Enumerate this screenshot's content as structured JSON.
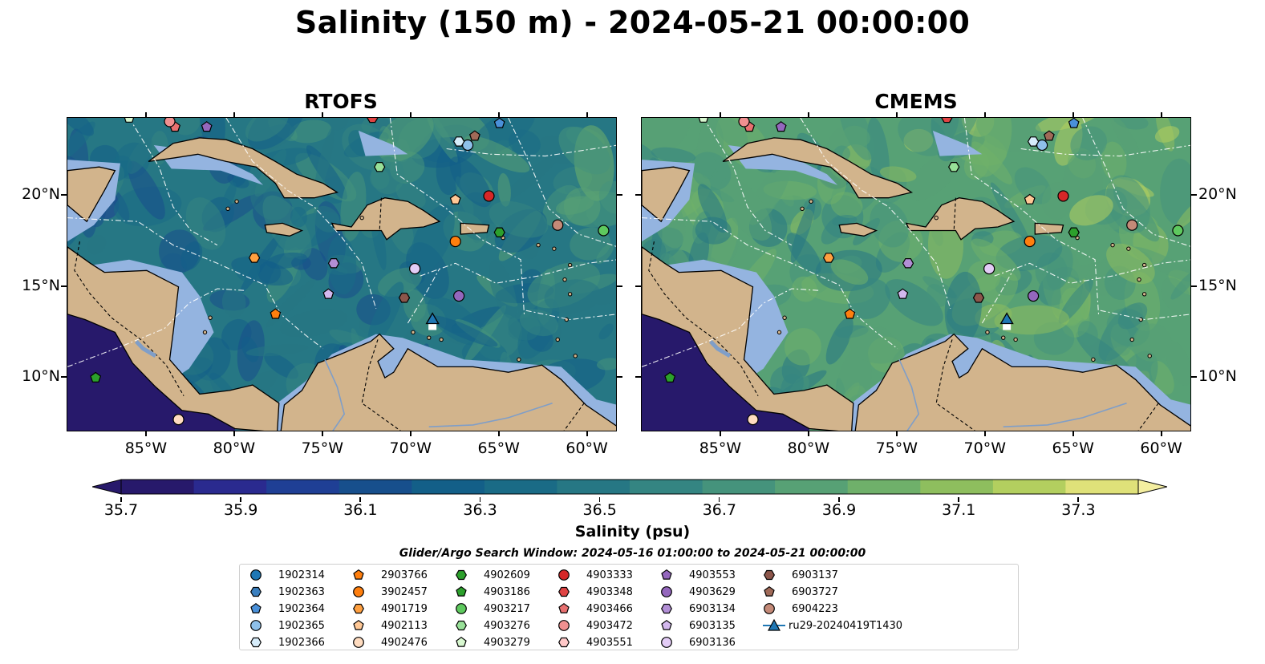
{
  "title": "Salinity (150 m) - 2024-05-21 00:00:00",
  "panels": [
    {
      "title": "RTOFS",
      "palette_bias": 0.0
    },
    {
      "title": "CMEMS",
      "palette_bias": 0.35
    }
  ],
  "axes": {
    "lon_ticks": [
      "85°W",
      "80°W",
      "75°W",
      "70°W",
      "65°W",
      "60°W"
    ],
    "lat_ticks": [
      "20°N",
      "15°N",
      "10°N"
    ],
    "lon_range": [
      -89.5,
      -58.3
    ],
    "lat_range": [
      7.0,
      24.3
    ]
  },
  "colorbar": {
    "ticks": [
      "35.7",
      "35.9",
      "36.1",
      "36.3",
      "36.5",
      "36.7",
      "36.9",
      "37.1",
      "37.3"
    ],
    "label": "Salinity (psu)",
    "range": [
      35.7,
      37.4
    ],
    "colors": [
      "#27196b",
      "#2a2a8f",
      "#1f3f95",
      "#174f8c",
      "#135f88",
      "#1a6b86",
      "#267784",
      "#348582",
      "#45937c",
      "#57a175",
      "#6fb06a",
      "#8ebe5e",
      "#b3cf5f",
      "#dfe179"
    ]
  },
  "search_window": "Glider/Argo Search Window: 2024-05-16 01:00:00 to 2024-05-21 00:00:00",
  "colors": {
    "land": "#d2b48c",
    "shelf": "#94b4e0",
    "deep": "#27196b",
    "glider": "#1f77b4"
  },
  "legend": [
    {
      "label": "1902314",
      "marker": "circle",
      "color": "#1f77b4"
    },
    {
      "label": "1902363",
      "marker": "hexagon",
      "color": "#3a7fbf"
    },
    {
      "label": "1902364",
      "marker": "pentagon",
      "color": "#4a90d9"
    },
    {
      "label": "1902365",
      "marker": "circle",
      "color": "#8ec0ea"
    },
    {
      "label": "1902366",
      "marker": "hexagon",
      "color": "#d6ecfa"
    },
    {
      "label": "2903766",
      "marker": "pentagon",
      "color": "#ff7f0e"
    },
    {
      "label": "3902457",
      "marker": "circle",
      "color": "#ff7f0e"
    },
    {
      "label": "4901719",
      "marker": "hexagon",
      "color": "#ffa040"
    },
    {
      "label": "4902113",
      "marker": "pentagon",
      "color": "#ffc896"
    },
    {
      "label": "4902476",
      "marker": "circle",
      "color": "#ffdcc0"
    },
    {
      "label": "4902609",
      "marker": "hexagon",
      "color": "#2ca02c"
    },
    {
      "label": "4903186",
      "marker": "pentagon",
      "color": "#2ca02c"
    },
    {
      "label": "4903217",
      "marker": "circle",
      "color": "#5ec95e"
    },
    {
      "label": "4903276",
      "marker": "hexagon",
      "color": "#98e098"
    },
    {
      "label": "4903279",
      "marker": "pentagon",
      "color": "#d8f8d0"
    },
    {
      "label": "4903333",
      "marker": "circle",
      "color": "#d62728"
    },
    {
      "label": "4903348",
      "marker": "hexagon",
      "color": "#e04444"
    },
    {
      "label": "4903466",
      "marker": "pentagon",
      "color": "#e87070"
    },
    {
      "label": "4903472",
      "marker": "circle",
      "color": "#f09090"
    },
    {
      "label": "4903551",
      "marker": "hexagon",
      "color": "#ffc8c8"
    },
    {
      "label": "4903553",
      "marker": "pentagon",
      "color": "#9467bd"
    },
    {
      "label": "4903629",
      "marker": "circle",
      "color": "#9467bd"
    },
    {
      "label": "6903134",
      "marker": "hexagon",
      "color": "#b28fd6"
    },
    {
      "label": "6903135",
      "marker": "pentagon",
      "color": "#d3b8ee"
    },
    {
      "label": "6903136",
      "marker": "circle",
      "color": "#e3ccf6"
    },
    {
      "label": "6903137",
      "marker": "hexagon",
      "color": "#8c564b"
    },
    {
      "label": "6903727",
      "marker": "pentagon",
      "color": "#a06a58"
    },
    {
      "label": "6904223",
      "marker": "circle",
      "color": "#c48a78"
    },
    {
      "label": "ru29-20240419T1430",
      "marker": "glider-track",
      "color": "#1f77b4"
    }
  ],
  "floats_on_map": [
    {
      "id": "1902364",
      "lon": -65.0,
      "lat": 24.0
    },
    {
      "id": "1902365",
      "lon": -66.8,
      "lat": 22.8
    },
    {
      "id": "1902366",
      "lon": -67.3,
      "lat": 23.0
    },
    {
      "id": "6903727",
      "lon": -66.4,
      "lat": 23.3
    },
    {
      "id": "4903276",
      "lon": -71.8,
      "lat": 21.6
    },
    {
      "id": "4902113",
      "lon": -67.5,
      "lat": 19.8
    },
    {
      "id": "4903333",
      "lon": -65.6,
      "lat": 20.0
    },
    {
      "id": "3902457",
      "lon": -67.5,
      "lat": 17.5
    },
    {
      "id": "4902609",
      "lon": -65.0,
      "lat": 18.0
    },
    {
      "id": "6904223",
      "lon": -61.7,
      "lat": 18.4
    },
    {
      "id": "4903217",
      "lon": -59.1,
      "lat": 18.1
    },
    {
      "id": "4901719",
      "lon": -78.9,
      "lat": 16.6
    },
    {
      "id": "6903134",
      "lon": -74.4,
      "lat": 16.3
    },
    {
      "id": "6903136",
      "lon": -69.8,
      "lat": 16.0
    },
    {
      "id": "6903135",
      "lon": -74.7,
      "lat": 14.6
    },
    {
      "id": "6903137",
      "lon": -70.4,
      "lat": 14.4
    },
    {
      "id": "4903629",
      "lon": -67.3,
      "lat": 14.5
    },
    {
      "id": "2903766",
      "lon": -77.7,
      "lat": 13.5
    },
    {
      "id": "4903186",
      "lon": -87.9,
      "lat": 10.0
    },
    {
      "id": "4902476",
      "lon": -83.2,
      "lat": 7.7
    },
    {
      "id": "4903466",
      "lon": -83.4,
      "lat": 23.8
    },
    {
      "id": "4903472",
      "lon": -83.7,
      "lat": 24.1
    },
    {
      "id": "4903553",
      "lon": -81.6,
      "lat": 23.8
    },
    {
      "id": "4903348",
      "lon": -72.2,
      "lat": 24.3
    },
    {
      "id": "4903279",
      "lon": -86.0,
      "lat": 24.3
    }
  ],
  "glider_position": {
    "lon": -68.8,
    "lat": 13.2
  }
}
